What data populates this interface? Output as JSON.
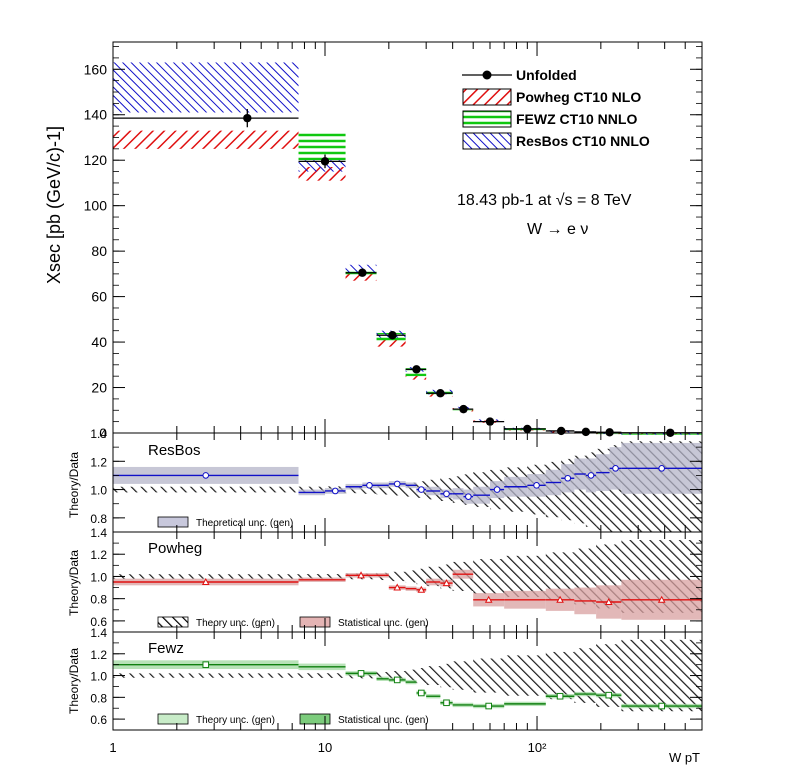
{
  "chart_data": [
    {
      "panel": "main",
      "type": "scatter",
      "ylabel": "Xsec [pb (GeV/c)-1]",
      "ylim": [
        0,
        172
      ],
      "xlim": [
        1,
        600
      ],
      "x_scale": "log",
      "yticks": [
        0,
        20,
        40,
        60,
        80,
        100,
        120,
        140,
        160
      ],
      "annotation_line1": "18.43 pb-1 at √s = 8 TeV",
      "annotation_line2": "W → e ν",
      "legend": [
        {
          "label": "Unfolded",
          "style": "marker"
        },
        {
          "label": "Powheg CT10 NLO",
          "style": "hatch-red"
        },
        {
          "label": "FEWZ CT10 NNLO",
          "style": "hatch-green"
        },
        {
          "label": "ResBos CT10 NNLO",
          "style": "hatch-blue"
        }
      ],
      "bin_edges": [
        1,
        7.5,
        12.5,
        17.5,
        24,
        30,
        40,
        50,
        70,
        110,
        150,
        190,
        250,
        600
      ],
      "series": [
        {
          "name": "Unfolded",
          "x": [
            4.3,
            10.0,
            15.0,
            20.8,
            27.0,
            35.0,
            45.0,
            60.0,
            90.0,
            130.0,
            170.0,
            220.0,
            425.0
          ],
          "values": [
            138.5,
            119.5,
            70.5,
            43.0,
            28.0,
            17.5,
            10.5,
            5.0,
            1.8,
            0.9,
            0.5,
            0.3,
            0.1
          ],
          "errors": [
            4,
            3,
            1.5,
            1.2,
            1,
            0.8,
            0.6,
            0.4,
            0.2,
            0.15,
            0.1,
            0.08,
            0.05
          ]
        },
        {
          "name": "Powheg CT10 NLO",
          "low": [
            125,
            111,
            67,
            38,
            23.5,
            16,
            9.5,
            4.5,
            1.5,
            0.7,
            0.4,
            0.2,
            0.05
          ],
          "high": [
            133,
            117,
            70,
            41,
            26,
            18,
            11,
            5.5,
            2.0,
            1.0,
            0.6,
            0.4,
            0.15
          ]
        },
        {
          "name": "FEWZ CT10 NNLO",
          "low": [
            null,
            120,
            69,
            40,
            25,
            17,
            10,
            5,
            1.7,
            0.8,
            0.45,
            0.25,
            0.08
          ],
          "high": [
            null,
            133,
            72,
            44,
            28.5,
            18.5,
            11.5,
            6,
            2.1,
            1.1,
            0.65,
            0.4,
            0.15
          ]
        },
        {
          "name": "ResBos CT10 NNLO",
          "low": [
            141,
            115,
            70.5,
            42,
            27,
            17,
            10.5,
            5.5,
            2.0,
            1.0,
            0.55,
            0.35,
            0.1
          ],
          "high": [
            163,
            120,
            74,
            45,
            29,
            19,
            11.5,
            6,
            2.3,
            1.2,
            0.7,
            0.45,
            0.18
          ]
        }
      ]
    },
    {
      "panel": "resbos-ratio",
      "type": "line",
      "title": "ResBos",
      "ylabel": "Theory/Data",
      "ylim": [
        0.7,
        1.4
      ],
      "yticks": [
        0.8,
        1.0,
        1.2,
        1.4
      ],
      "legend": [
        {
          "label": "Theoretical unc. (gen)",
          "style": "box-blue"
        }
      ],
      "color": "#1010c8",
      "bin_edges": [
        1,
        7.5,
        10,
        12.5,
        15,
        17.5,
        20,
        24,
        27,
        30,
        35,
        40,
        45,
        50,
        60,
        70,
        90,
        110,
        130,
        150,
        170,
        190,
        220,
        250,
        600
      ],
      "values": [
        1.1,
        0.98,
        0.99,
        1.02,
        1.03,
        1.03,
        1.04,
        1.03,
        1.0,
        0.99,
        0.97,
        0.97,
        0.95,
        0.96,
        1.0,
        1.02,
        1.03,
        1.05,
        1.08,
        1.11,
        1.1,
        1.12,
        1.15,
        1.15
      ],
      "band": [
        0.06,
        0.02,
        0.02,
        0.02,
        0.02,
        0.02,
        0.02,
        0.02,
        0.02,
        0.03,
        0.03,
        0.04,
        0.05,
        0.06,
        0.06,
        0.07,
        0.08,
        0.09,
        0.1,
        0.11,
        0.12,
        0.13,
        0.15,
        0.18
      ]
    },
    {
      "panel": "powheg-ratio",
      "type": "line",
      "title": "Powheg",
      "ylabel": "Theory/Data",
      "ylim": [
        0.5,
        1.4
      ],
      "yticks": [
        0.6,
        0.8,
        1.0,
        1.2,
        1.4
      ],
      "legend": [
        {
          "label": "Theory unc. (gen)",
          "style": "hatch-black"
        },
        {
          "label": "Statistical unc. (gen)",
          "style": "box-red"
        }
      ],
      "color": "#e01010",
      "bin_edges": [
        1,
        7.5,
        12.5,
        17.5,
        20,
        24,
        27,
        30,
        35,
        40,
        50,
        70,
        110,
        150,
        190,
        250,
        600
      ],
      "values": [
        0.95,
        0.97,
        1.01,
        1.01,
        0.9,
        0.89,
        0.88,
        0.95,
        0.94,
        1.02,
        0.79,
        0.79,
        0.79,
        0.78,
        0.77,
        0.79
      ],
      "band": [
        0.03,
        0.02,
        0.02,
        0.02,
        0.02,
        0.02,
        0.02,
        0.03,
        0.03,
        0.04,
        0.06,
        0.08,
        0.1,
        0.12,
        0.15,
        0.18
      ]
    },
    {
      "panel": "fewz-ratio",
      "type": "line",
      "title": "Fewz",
      "ylabel": "Theory/Data",
      "ylim": [
        0.5,
        1.4
      ],
      "yticks": [
        0.6,
        0.8,
        1.0,
        1.2,
        1.4
      ],
      "xlabel": "W pT",
      "xticks": [
        1,
        10,
        100
      ],
      "xtick_labels": [
        "1",
        "10",
        "10²"
      ],
      "legend": [
        {
          "label": "Theory unc. (gen)",
          "style": "box-lightgreen"
        },
        {
          "label": "Statistical unc. (gen)",
          "style": "box-green"
        }
      ],
      "color": "#108010",
      "bin_edges": [
        1,
        7.5,
        12.5,
        17.5,
        20,
        24,
        27,
        30,
        35,
        40,
        50,
        70,
        110,
        150,
        190,
        250,
        600
      ],
      "values": [
        1.1,
        1.08,
        1.02,
        0.97,
        0.96,
        0.94,
        0.84,
        0.81,
        0.75,
        0.73,
        0.72,
        0.74,
        0.81,
        0.83,
        0.82,
        0.72
      ],
      "band": [
        0.04,
        0.03,
        0.02,
        0.02,
        0.02,
        0.02,
        0.02,
        0.02,
        0.02,
        0.02,
        0.02,
        0.02,
        0.02,
        0.02,
        0.02,
        0.02
      ]
    }
  ]
}
